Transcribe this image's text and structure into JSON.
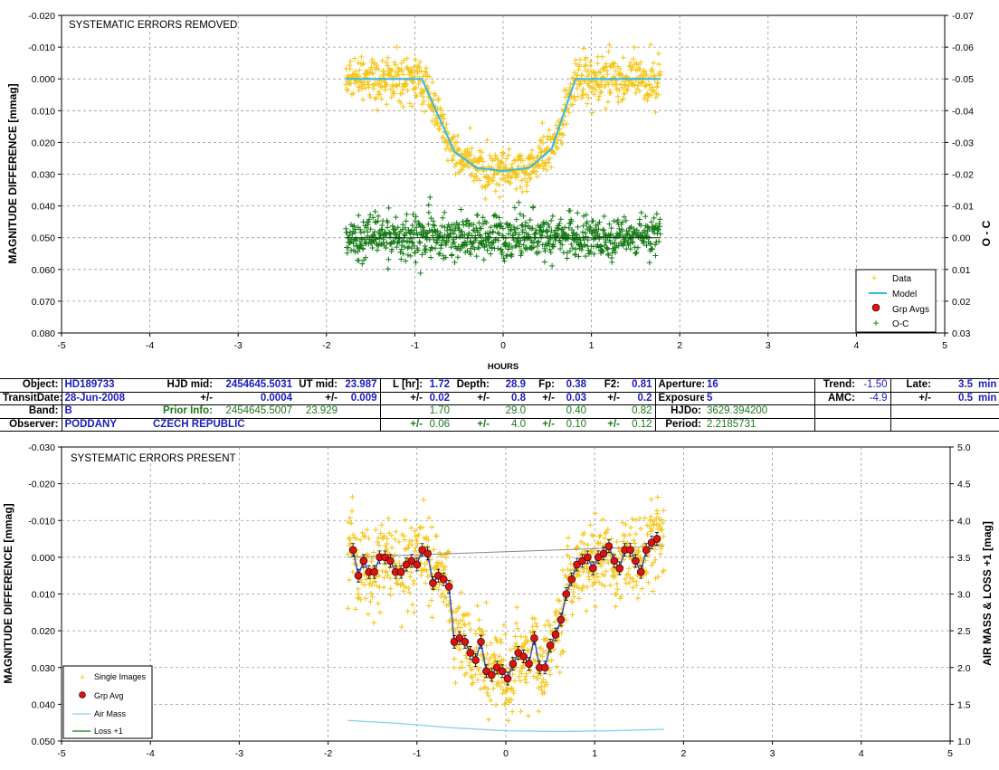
{
  "chart_data": [
    {
      "type": "scatter",
      "title": "SYSTEMATIC ERRORS REMOVED",
      "xlabel": "HOURS",
      "ylabel": "MAGNITUDE DIFFERENCE [mmag]",
      "y2label": "O - C",
      "xlim": [
        -5,
        5
      ],
      "ylim": [
        -0.02,
        0.08
      ],
      "y_reversed": true,
      "y2lim": [
        -0.07,
        0.03
      ],
      "y2_reversed": true,
      "x_ticks": [
        "-5",
        "-4",
        "-3",
        "-2",
        "-1",
        "0",
        "1",
        "2",
        "3",
        "4",
        "5"
      ],
      "y_ticks": [
        "-0.020",
        "-0.010",
        "0.000",
        "0.010",
        "0.020",
        "0.030",
        "0.040",
        "0.050",
        "0.060",
        "0.070",
        "0.080"
      ],
      "y2_ticks": [
        "-0.07",
        "-0.06",
        "-0.05",
        "-0.04",
        "-0.03",
        "-0.02",
        "-0.01",
        "0.00",
        "0.01",
        "0.02",
        "0.03"
      ],
      "grid": true,
      "legend_position": "bottom-right",
      "legend": [
        "Data",
        "Model",
        "Grp Avgs",
        "O-C"
      ],
      "colors": {
        "data": "#f5c518",
        "model": "#33b8e6",
        "oc": "#157a15",
        "grp": "#e01010"
      },
      "series": [
        {
          "name": "Data",
          "kind": "scatter",
          "x_range": [
            -1.78,
            1.78
          ],
          "mean_oot": 0.0,
          "scatter_sd": 0.0035
        },
        {
          "name": "Model",
          "kind": "line",
          "x": [
            -1.78,
            -0.92,
            -0.55,
            -0.3,
            0.0,
            0.3,
            0.55,
            0.82,
            1.78
          ],
          "y": [
            0.0,
            0.0,
            0.023,
            0.028,
            0.029,
            0.028,
            0.022,
            0.0,
            0.0
          ]
        },
        {
          "name": "O-C",
          "kind": "scatter",
          "x_range": [
            -1.78,
            1.78
          ],
          "mean": 0.0,
          "scatter_sd": 0.0035,
          "axis": "y2"
        }
      ]
    },
    {
      "type": "scatter",
      "title": "SYSTEMATIC ERRORS PRESENT",
      "xlabel": "",
      "ylabel": "MAGNITUDE DIFFERENCE [mmag]",
      "y2label": "AIR MASS & LOSS +1 [mag]",
      "xlim": [
        -5,
        5
      ],
      "ylim": [
        -0.03,
        0.05
      ],
      "y_reversed": true,
      "y2lim": [
        1.0,
        5.0
      ],
      "x_ticks": [
        "-5",
        "-4",
        "-3",
        "-2",
        "-1",
        "0",
        "1",
        "2",
        "3",
        "4",
        "5"
      ],
      "y_ticks": [
        "-0.030",
        "-0.020",
        "-0.010",
        "0.000",
        "0.010",
        "0.020",
        "0.030",
        "0.040",
        "0.050"
      ],
      "y2_ticks": [
        "1.0",
        "1.5",
        "2.0",
        "2.5",
        "3.0",
        "3.5",
        "4.0",
        "4.5",
        "5.0"
      ],
      "grid": true,
      "legend_position": "bottom-left",
      "legend": [
        "Single Images",
        "Grp Avg",
        "Air Mass",
        "Loss +1"
      ],
      "series": [
        {
          "name": "Single Images",
          "kind": "scatter",
          "x_range": [
            -1.78,
            1.78
          ],
          "scatter_sd": 0.0055
        },
        {
          "name": "Grp Avg",
          "kind": "points",
          "x": [
            -1.72,
            -1.66,
            -1.6,
            -1.54,
            -1.48,
            -1.42,
            -1.36,
            -1.3,
            -1.24,
            -1.18,
            -1.12,
            -1.06,
            -1.0,
            -0.94,
            -0.88,
            -0.82,
            -0.76,
            -0.7,
            -0.64,
            -0.58,
            -0.52,
            -0.46,
            -0.4,
            -0.34,
            -0.28,
            -0.22,
            -0.16,
            -0.1,
            -0.04,
            0.02,
            0.08,
            0.14,
            0.2,
            0.26,
            0.32,
            0.38,
            0.44,
            0.5,
            0.56,
            0.62,
            0.68,
            0.74,
            0.8,
            0.86,
            0.92,
            0.98,
            1.04,
            1.1,
            1.16,
            1.22,
            1.28,
            1.34,
            1.4,
            1.46,
            1.52,
            1.58,
            1.64,
            1.7
          ],
          "y": [
            -0.002,
            0.005,
            0.001,
            0.004,
            0.004,
            0.0,
            0.0,
            0.001,
            0.004,
            0.004,
            0.002,
            0.001,
            0.002,
            -0.002,
            -0.001,
            0.007,
            0.005,
            0.006,
            0.008,
            0.023,
            0.022,
            0.023,
            0.026,
            0.028,
            0.023,
            0.031,
            0.032,
            0.03,
            0.031,
            0.033,
            0.029,
            0.026,
            0.027,
            0.029,
            0.022,
            0.03,
            0.03,
            0.024,
            0.021,
            0.017,
            0.01,
            0.006,
            0.002,
            0.001,
            0.0,
            0.003,
            0.0,
            -0.001,
            -0.003,
            0.001,
            0.003,
            -0.002,
            -0.002,
            0.001,
            0.004,
            -0.002,
            -0.004,
            -0.005
          ]
        },
        {
          "name": "Air Mass",
          "kind": "line",
          "axis": "y2",
          "x": [
            -1.78,
            -1.2,
            -0.6,
            0.0,
            0.6,
            1.2,
            1.78
          ],
          "y": [
            1.28,
            1.24,
            1.18,
            1.14,
            1.13,
            1.14,
            1.16
          ]
        },
        {
          "name": "Loss +1",
          "kind": "line",
          "axis": "y2",
          "x": [
            -1.78,
            1.78
          ],
          "y": [
            1.0,
            1.0
          ]
        },
        {
          "name": "",
          "kind": "line",
          "color": "#888888",
          "x": [
            -1.78,
            1.78
          ],
          "y": [
            0.0,
            -0.003
          ]
        }
      ]
    }
  ],
  "info": {
    "object_label": "Object:",
    "object_value": "HD189733",
    "hjd_mid_label": "HJD mid:",
    "hjd_mid_value": "2454645.5031",
    "ut_mid_label": "UT mid:",
    "ut_mid_value": "23.987",
    "l_label": "L [hr]:",
    "l_value": "1.72",
    "depth_label": "Depth:",
    "depth_value": "28.9",
    "fp_label": "Fp:",
    "fp_value": "0.38",
    "f2_label": "F2:",
    "f2_value": "0.81",
    "aperture_label": "Aperture:",
    "aperture_value": "16",
    "trend_label": "Trend:",
    "trend_value": "-1.50",
    "late_label": "Late:",
    "late_value": "3.5",
    "late_unit": "min",
    "transit_date_label": "TransitDate:",
    "transit_date_value": "28-Jun-2008",
    "pm": "+/-",
    "hjd_err": "0.0004",
    "ut_err": "0.009",
    "l_err": "0.02",
    "depth_err": "0.8",
    "fp_err": "0.03",
    "f2_err": "0.2",
    "exposure_label": "Exposure:",
    "exposure_value": "5",
    "amc_label": "AMC:",
    "amc_value": "-4.9",
    "late_err": "0.5",
    "late_err_unit": "min",
    "band_label": "Band:",
    "band_value": "B",
    "prior_label": "Prior Info:",
    "prior_hjd": "2454645.5007",
    "prior_ut": "23.929",
    "prior_l": "1.70",
    "prior_depth": "29.0",
    "prior_fp": "0.40",
    "prior_f2": "0.82",
    "hjdo_label": "HJDo:",
    "hjdo_value": "3629.394200",
    "observer_label": "Observer:",
    "observer_value": "PODDANY",
    "country": "CZECH REPUBLIC",
    "prior_l_err": "0.06",
    "prior_depth_err": "4.0",
    "prior_fp_err": "0.10",
    "prior_f2_err": "0.12",
    "period_label": "Period:",
    "period_value": "2.2185731"
  }
}
